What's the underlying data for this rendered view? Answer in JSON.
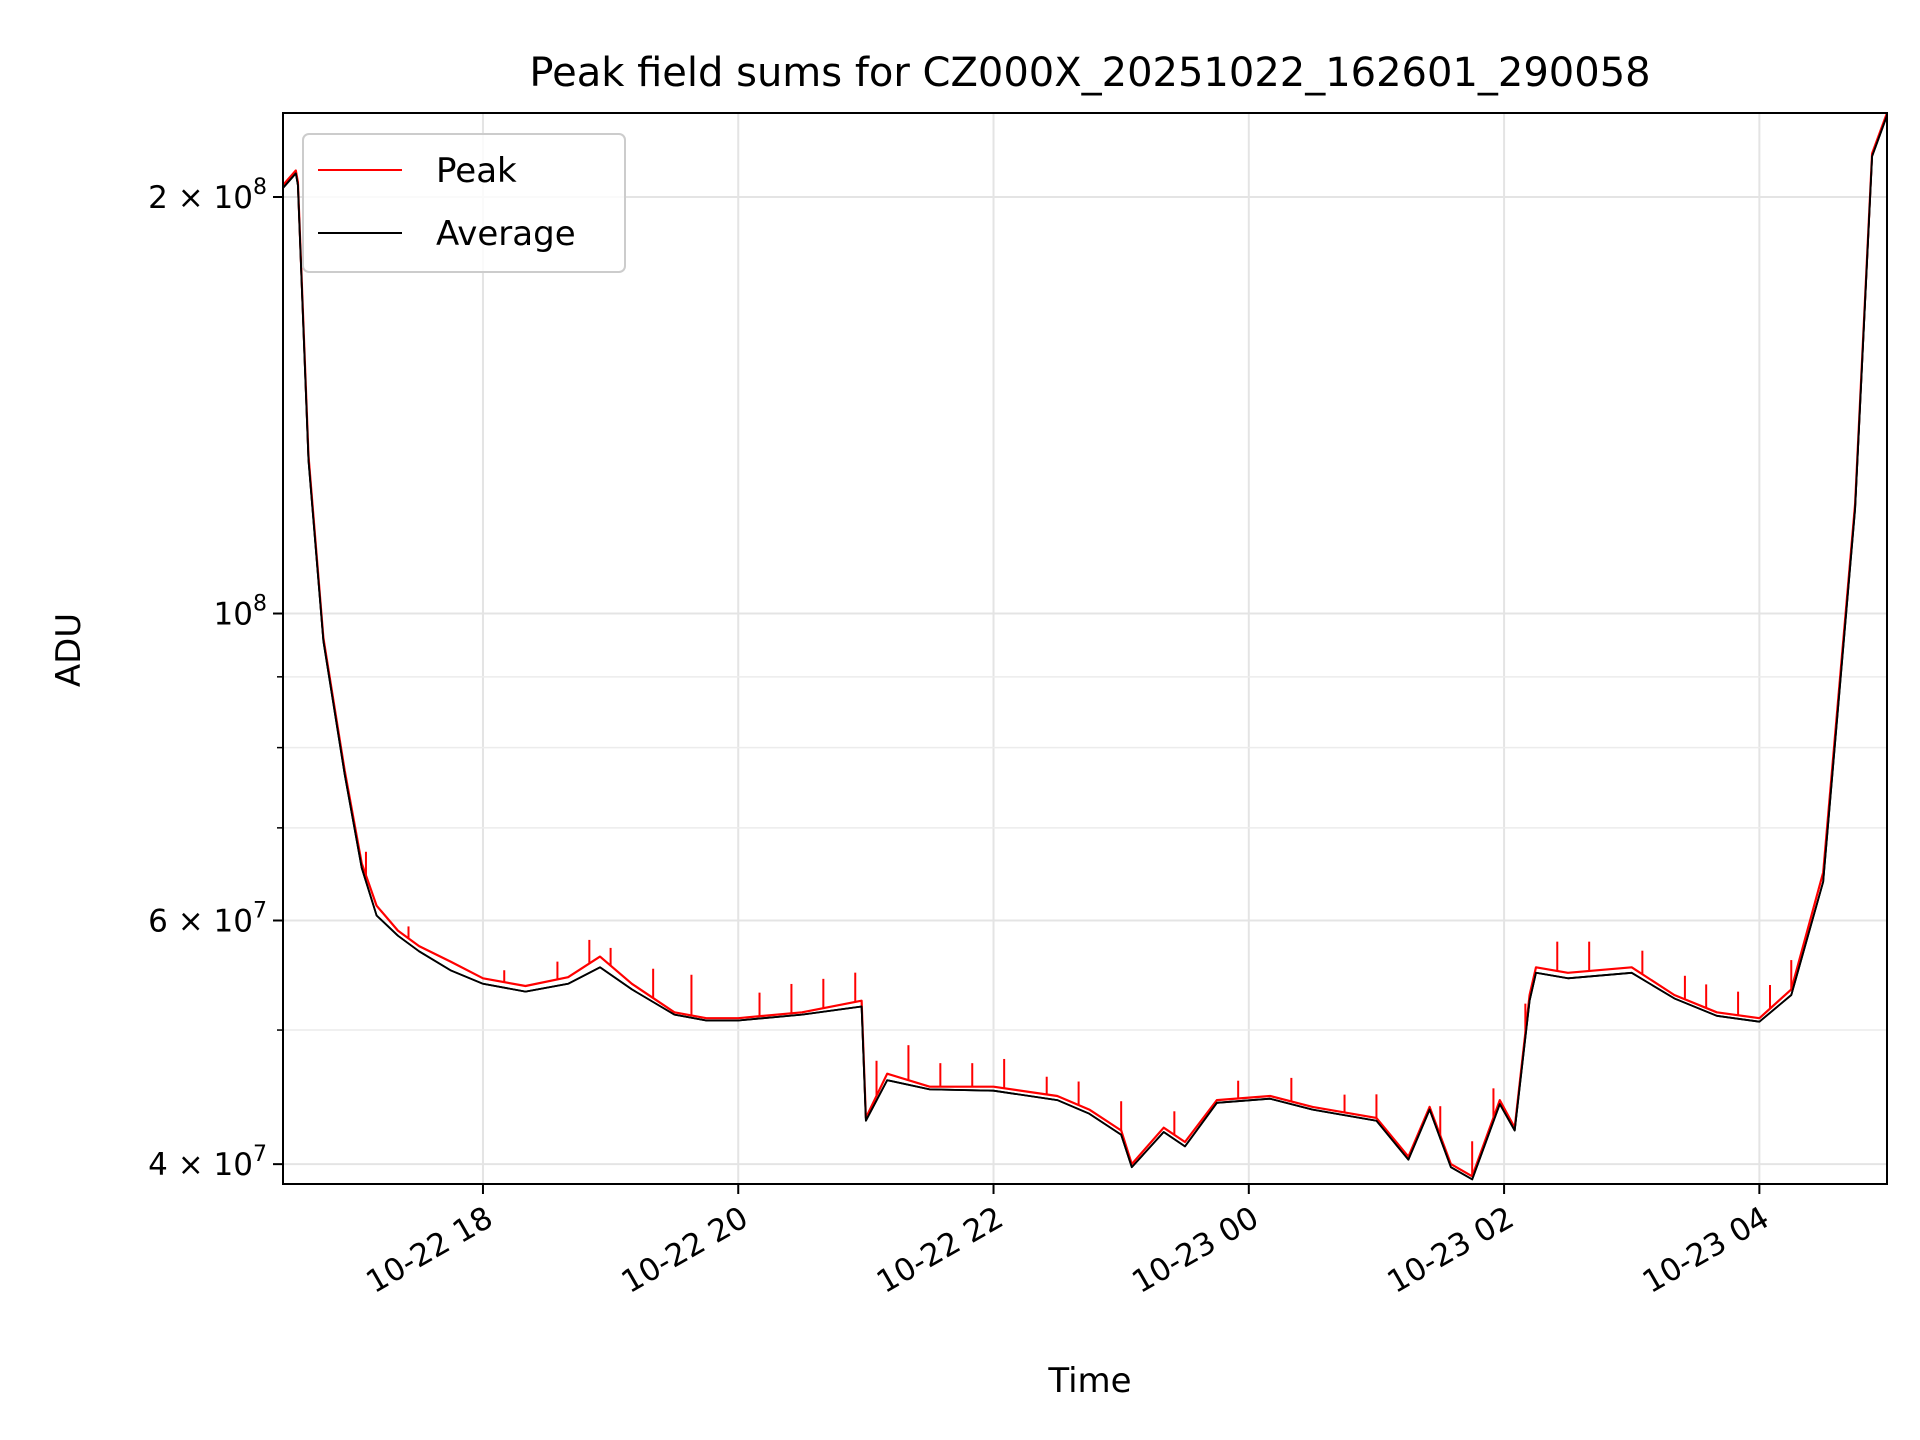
{
  "chart_data": {
    "type": "line",
    "title": "Peak field sums for CZ000X_20251022_162601_290058",
    "xlabel": "Time",
    "ylabel": "ADU",
    "yscale": "log",
    "grid": true,
    "legend_position": "top-left",
    "xlim": [
      "2025-10-22 16:26",
      "2025-10-23 05:00"
    ],
    "ylim": [
      38700000,
      230000000
    ],
    "x_ticks": [
      {
        "at": "2025-10-22 18:00",
        "label": "10-22 18"
      },
      {
        "at": "2025-10-22 20:00",
        "label": "10-22 20"
      },
      {
        "at": "2025-10-22 22:00",
        "label": "10-22 22"
      },
      {
        "at": "2025-10-23 00:00",
        "label": "10-23 00"
      },
      {
        "at": "2025-10-23 02:00",
        "label": "10-23 02"
      },
      {
        "at": "2025-10-23 04:00",
        "label": "10-23 04"
      }
    ],
    "y_ticks": [
      {
        "value": 40000000,
        "mant": "4",
        "exp": "7"
      },
      {
        "value": 60000000,
        "mant": "6",
        "exp": "7"
      },
      {
        "value": 100000000,
        "mant": "",
        "exp": "8"
      },
      {
        "value": 200000000,
        "mant": "2",
        "exp": "8"
      }
    ],
    "y_minor_ticks": [
      50000000,
      70000000,
      80000000,
      90000000
    ],
    "series": [
      {
        "name": "Peak",
        "color": "#ff0000",
        "x": [
          "2025-10-22 16:26",
          "2025-10-22 16:32",
          "2025-10-22 16:33",
          "2025-10-22 16:38",
          "2025-10-22 16:45",
          "2025-10-22 16:55",
          "2025-10-22 17:03",
          "2025-10-22 17:10",
          "2025-10-22 17:20",
          "2025-10-22 17:30",
          "2025-10-22 17:45",
          "2025-10-22 18:00",
          "2025-10-22 18:20",
          "2025-10-22 18:40",
          "2025-10-22 18:55",
          "2025-10-22 19:10",
          "2025-10-22 19:30",
          "2025-10-22 19:45",
          "2025-10-22 20:00",
          "2025-10-22 20:30",
          "2025-10-22 20:58",
          "2025-10-22 21:00",
          "2025-10-22 21:10",
          "2025-10-22 21:30",
          "2025-10-22 22:00",
          "2025-10-22 22:30",
          "2025-10-22 22:45",
          "2025-10-22 23:00",
          "2025-10-22 23:05",
          "2025-10-22 23:20",
          "2025-10-22 23:30",
          "2025-10-22 23:45",
          "2025-10-23 00:10",
          "2025-10-23 00:30",
          "2025-10-23 01:00",
          "2025-10-23 01:15",
          "2025-10-23 01:25",
          "2025-10-23 01:35",
          "2025-10-23 01:45",
          "2025-10-23 01:58",
          "2025-10-23 02:05",
          "2025-10-23 02:12",
          "2025-10-23 02:15",
          "2025-10-23 02:30",
          "2025-10-23 03:00",
          "2025-10-23 03:20",
          "2025-10-23 03:40",
          "2025-10-23 04:00",
          "2025-10-23 04:15",
          "2025-10-23 04:30",
          "2025-10-23 04:45",
          "2025-10-23 04:53",
          "2025-10-23 05:00"
        ],
        "y": [
          204000000,
          209000000,
          205000000,
          130000000,
          96000000,
          77000000,
          66000000,
          61500000,
          59000000,
          57500000,
          56000000,
          54500000,
          53800000,
          54600000,
          56500000,
          54000000,
          51500000,
          51000000,
          51000000,
          51500000,
          52500000,
          43200000,
          46500000,
          45500000,
          45500000,
          44800000,
          43800000,
          42300000,
          40000000,
          42500000,
          41500000,
          44500000,
          44800000,
          44000000,
          43200000,
          40500000,
          44000000,
          40000000,
          39200000,
          44500000,
          42500000,
          53000000,
          55500000,
          55000000,
          55500000,
          53000000,
          51500000,
          51000000,
          53500000,
          65000000,
          120000000,
          215000000,
          230000000
        ],
        "spike_times": [
          "2025-10-22 17:05",
          "2025-10-22 17:25",
          "2025-10-22 18:10",
          "2025-10-22 18:35",
          "2025-10-22 18:50",
          "2025-10-22 19:00",
          "2025-10-22 19:20",
          "2025-10-22 19:38",
          "2025-10-22 20:10",
          "2025-10-22 20:25",
          "2025-10-22 20:40",
          "2025-10-22 20:55",
          "2025-10-22 21:05",
          "2025-10-22 21:20",
          "2025-10-22 21:35",
          "2025-10-22 21:50",
          "2025-10-22 22:05",
          "2025-10-22 22:25",
          "2025-10-22 22:40",
          "2025-10-22 23:00",
          "2025-10-22 23:25",
          "2025-10-22 23:55",
          "2025-10-23 00:20",
          "2025-10-23 00:45",
          "2025-10-23 01:00",
          "2025-10-23 01:30",
          "2025-10-23 01:45",
          "2025-10-23 01:55",
          "2025-10-23 02:10",
          "2025-10-23 02:25",
          "2025-10-23 02:40",
          "2025-10-23 03:05",
          "2025-10-23 03:25",
          "2025-10-23 03:35",
          "2025-10-23 03:50",
          "2025-10-23 04:05",
          "2025-10-23 04:15"
        ],
        "spike_heights": [
          1.04,
          1.02,
          1.02,
          1.03,
          1.04,
          1.03,
          1.05,
          1.07,
          1.04,
          1.05,
          1.05,
          1.05,
          1.06,
          1.06,
          1.04,
          1.04,
          1.05,
          1.03,
          1.04,
          1.05,
          1.04,
          1.03,
          1.04,
          1.03,
          1.04,
          1.05,
          1.06,
          1.05,
          1.05,
          1.05,
          1.05,
          1.04,
          1.04,
          1.04,
          1.04,
          1.04,
          1.05
        ]
      },
      {
        "name": "Average",
        "color": "#000000",
        "x": [
          "2025-10-22 16:26",
          "2025-10-22 16:32",
          "2025-10-22 16:33",
          "2025-10-22 16:38",
          "2025-10-22 16:45",
          "2025-10-22 16:55",
          "2025-10-22 17:03",
          "2025-10-22 17:10",
          "2025-10-22 17:20",
          "2025-10-22 17:30",
          "2025-10-22 17:45",
          "2025-10-22 18:00",
          "2025-10-22 18:20",
          "2025-10-22 18:40",
          "2025-10-22 18:55",
          "2025-10-22 19:10",
          "2025-10-22 19:30",
          "2025-10-22 19:45",
          "2025-10-22 20:00",
          "2025-10-22 20:30",
          "2025-10-22 20:58",
          "2025-10-22 21:00",
          "2025-10-22 21:10",
          "2025-10-22 21:30",
          "2025-10-22 22:00",
          "2025-10-22 22:30",
          "2025-10-22 22:45",
          "2025-10-22 23:00",
          "2025-10-22 23:05",
          "2025-10-22 23:20",
          "2025-10-22 23:30",
          "2025-10-22 23:45",
          "2025-10-23 00:10",
          "2025-10-23 00:30",
          "2025-10-23 01:00",
          "2025-10-23 01:15",
          "2025-10-23 01:25",
          "2025-10-23 01:35",
          "2025-10-23 01:45",
          "2025-10-23 01:58",
          "2025-10-23 02:05",
          "2025-10-23 02:12",
          "2025-10-23 02:15",
          "2025-10-23 02:30",
          "2025-10-23 03:00",
          "2025-10-23 03:20",
          "2025-10-23 03:40",
          "2025-10-23 04:00",
          "2025-10-23 04:15",
          "2025-10-23 04:30",
          "2025-10-23 04:45",
          "2025-10-23 04:53",
          "2025-10-23 05:00"
        ],
        "y": [
          203000000,
          208000000,
          204000000,
          129000000,
          95500000,
          76500000,
          65500000,
          60500000,
          58500000,
          57000000,
          55200000,
          54000000,
          53300000,
          54000000,
          55500000,
          53500000,
          51300000,
          50800000,
          50800000,
          51300000,
          52000000,
          43000000,
          46000000,
          45300000,
          45200000,
          44500000,
          43500000,
          42000000,
          39800000,
          42200000,
          41200000,
          44300000,
          44600000,
          43800000,
          43000000,
          40300000,
          43800000,
          39800000,
          39000000,
          44200000,
          42300000,
          52500000,
          55000000,
          54500000,
          55000000,
          52700000,
          51200000,
          50700000,
          53000000,
          64000000,
          119000000,
          214000000,
          229000000
        ]
      }
    ]
  }
}
